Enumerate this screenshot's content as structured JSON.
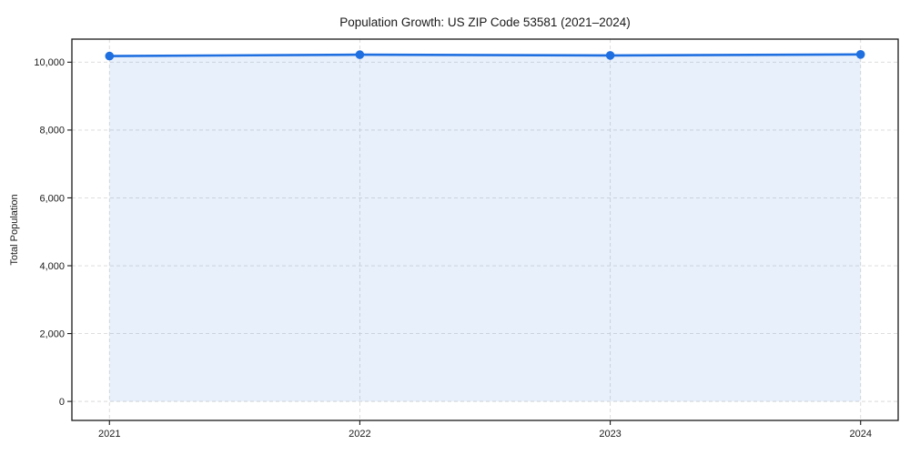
{
  "chart_data": {
    "type": "line",
    "title": "Population Growth: US ZIP Code 53581 (2021–2024)",
    "xlabel": "",
    "ylabel": "Total Population",
    "categories": [
      2021,
      2022,
      2023,
      2024
    ],
    "series": [
      {
        "name": "Total Population",
        "values": [
          10180,
          10220,
          10200,
          10230
        ]
      }
    ],
    "area_fill_to": 0,
    "xlim": [
      2020.85,
      2024.15
    ],
    "ylim": [
      -560,
      10680
    ],
    "xticks": [
      {
        "value": 2021,
        "label": "2021"
      },
      {
        "value": 2022,
        "label": "2022"
      },
      {
        "value": 2023,
        "label": "2023"
      },
      {
        "value": 2024,
        "label": "2024"
      }
    ],
    "yticks": [
      {
        "value": 0,
        "label": "0"
      },
      {
        "value": 2000,
        "label": "2,000"
      },
      {
        "value": 4000,
        "label": "4,000"
      },
      {
        "value": 6000,
        "label": "6,000"
      },
      {
        "value": 8000,
        "label": "8,000"
      },
      {
        "value": 10000,
        "label": "10,000"
      }
    ],
    "grid": true,
    "grid_style": "dashed",
    "legend": "none",
    "marker": "circle",
    "colors": {
      "line": "#1f6fe0",
      "marker": "#1f6fe0",
      "area": "rgba(31,111,224,0.10)",
      "grid": "#d9d9d9",
      "spine": "#1a1a1a",
      "text": "#1a1a1a",
      "background": "#ffffff"
    }
  }
}
